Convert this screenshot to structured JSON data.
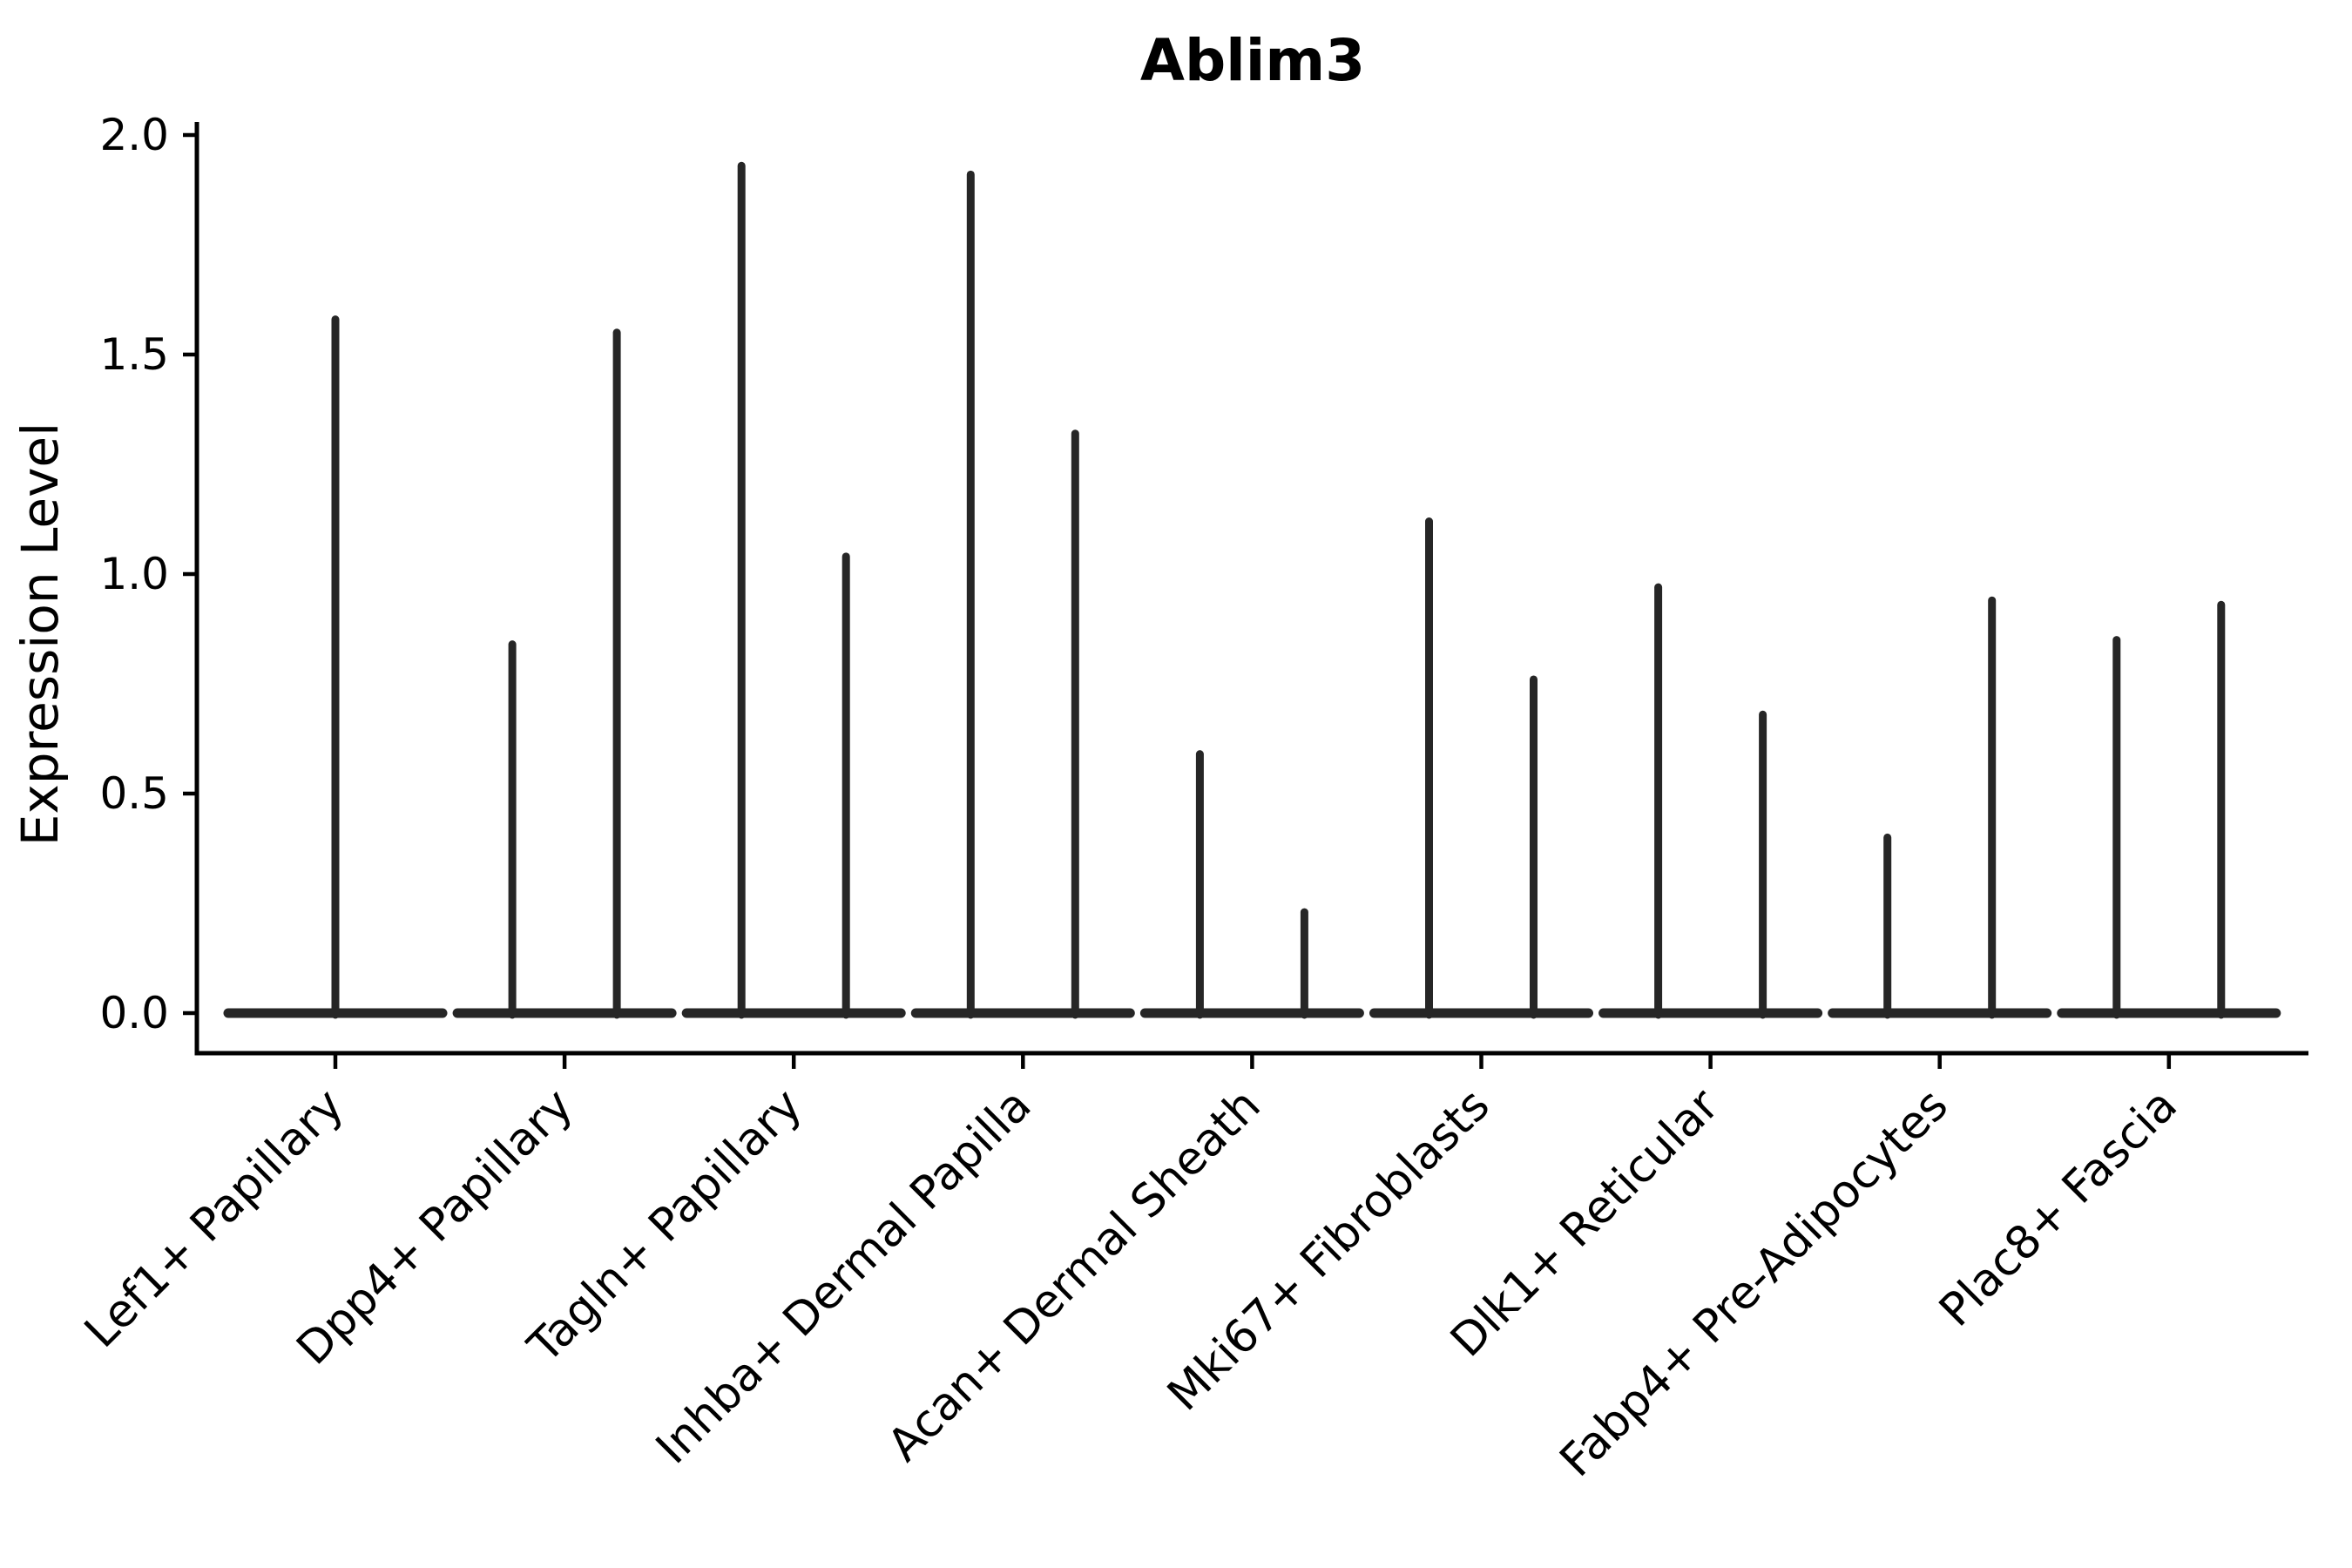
{
  "chart_data": {
    "type": "violin",
    "title": "Ablim3",
    "xlabel": "",
    "ylabel": "Expression Level",
    "ylim": [
      0.0,
      2.0
    ],
    "ytick_labels": [
      "0.0",
      "0.5",
      "1.0",
      "1.5",
      "2.0"
    ],
    "grid": false,
    "legend_position": "none",
    "style": {
      "violin_color": "#262626",
      "axis_color": "#000000",
      "background_color": "#ffffff"
    },
    "categories": [
      {
        "label": "Lef1+ Papillary",
        "violins": [
          {
            "position": "center",
            "max": 1.58
          }
        ]
      },
      {
        "label": "Dpp4+ Papillary",
        "violins": [
          {
            "position": "left",
            "max": 0.84
          },
          {
            "position": "right",
            "max": 1.55
          }
        ]
      },
      {
        "label": "Tagln+ Papillary",
        "violins": [
          {
            "position": "left",
            "max": 1.93
          },
          {
            "position": "right",
            "max": 1.04
          }
        ]
      },
      {
        "label": "Inhba+ Dermal Papilla",
        "violins": [
          {
            "position": "left",
            "max": 1.91
          },
          {
            "position": "right",
            "max": 1.32
          }
        ]
      },
      {
        "label": "Acan+ Dermal Sheath",
        "violins": [
          {
            "position": "left",
            "max": 0.59
          },
          {
            "position": "right",
            "max": 0.23
          }
        ]
      },
      {
        "label": "Mki67+ Fibroblasts",
        "violins": [
          {
            "position": "left",
            "max": 1.12
          },
          {
            "position": "right",
            "max": 0.76
          }
        ]
      },
      {
        "label": "Dlk1+ Reticular",
        "violins": [
          {
            "position": "left",
            "max": 0.97
          },
          {
            "position": "right",
            "max": 0.68
          }
        ]
      },
      {
        "label": "Fabp4+ Pre-Adipocytes",
        "violins": [
          {
            "position": "left",
            "max": 0.4
          },
          {
            "position": "right",
            "max": 0.94
          }
        ]
      },
      {
        "label": "Plac8+ Fascia",
        "violins": [
          {
            "position": "left",
            "max": 0.85
          },
          {
            "position": "right",
            "max": 0.93
          }
        ]
      }
    ]
  }
}
